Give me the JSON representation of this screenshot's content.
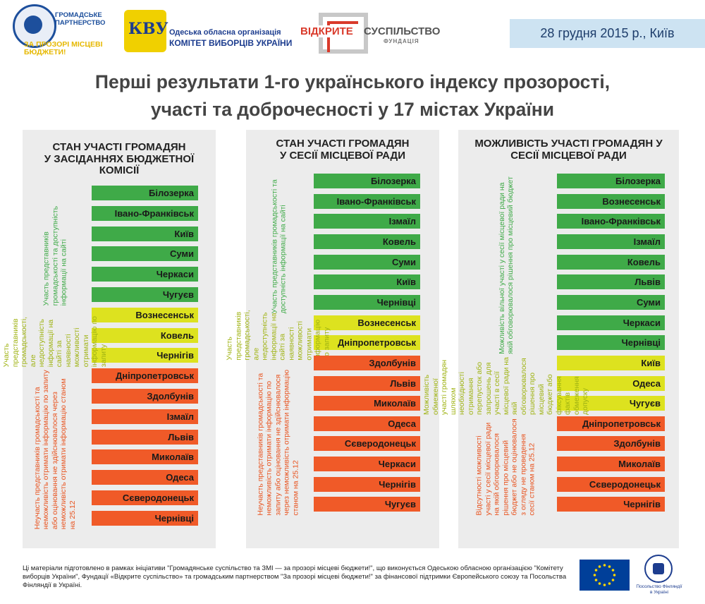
{
  "header": {
    "logo_gp_line1": "ГРОМАДСЬКЕ ПАРТНЕРСТВО",
    "logo_gp_line2": "ЗА ПРОЗОРІ МІСЦЕВІ БЮДЖЕТИ!",
    "logo_kvu_mark": "КВУ",
    "logo_kvu_line1": "Одеська обласна організація",
    "logo_kvu_line2": "КОМІТЕТ ВИБОРЦІВ УКРАЇНИ",
    "logo_os_word1": "ВІДКРИТЕ",
    "logo_os_word2": "СУСПІЛЬСТВО",
    "logo_os_word3": "ФУНДАЦІЯ",
    "date": "28 грудня 2015 р., Київ",
    "title_line1": "Перші результати 1-го українського індексу прозорості,",
    "title_line2": "участі  та доброчесності у 17 містах України"
  },
  "panels": [
    {
      "title": [
        "СТАН УЧАСТІ ГРОМАДЯН",
        "У ЗАСІДАННЯХ БЮДЖЕТНОЇ",
        "КОМІСІЇ"
      ],
      "groups": [
        {
          "color": "green",
          "label": "Участь представників громадськості та доступність інформації на сайті",
          "cities": [
            "Білозерка",
            "Івано-Франківськ",
            "Київ",
            "Суми",
            "Черкаси",
            "Чугуєв"
          ]
        },
        {
          "color": "yellow",
          "label": "Участь представників громадськості, але недоступність інформації на сайті за наявності можливості отримати інформацію по запиту",
          "cities": [
            "Вознесенськ",
            "Ковель",
            "Чернігів"
          ]
        },
        {
          "color": "red",
          "label": "Неучасть представників громадськості та неможливість отримати інформацію по запиту або оціновання не здійснювалося через неможливість отримати інформацію станом на 25.12",
          "cities": [
            "Дніпропетровськ",
            "Здолбунів",
            "Ізмаїл",
            "Львів",
            "Миколаїв",
            "Одеса",
            "Сєверодонецьк",
            "Чернівці"
          ]
        }
      ]
    },
    {
      "title": [
        "СТАН УЧАСТІ ГРОМАДЯН",
        "У СЕСІЇ МІСЦЕВОЇ РАДИ"
      ],
      "groups": [
        {
          "color": "green",
          "label": "Участь представників громадськості та доступність інформації на сайті",
          "cities": [
            "Білозерка",
            "Івано-Франківськ",
            "Ізмаїл",
            "Ковель",
            "Суми",
            "Київ",
            "Чернівці"
          ]
        },
        {
          "color": "yellow",
          "label": "Участь представників громадськості, але недоступність інформації на сайті за наявності можливості отримати інформацію по запиту",
          "cities": [
            "Вознесенськ",
            "Дніпропетровськ"
          ]
        },
        {
          "color": "red",
          "label": "Неучасть представників громадськості та неможливість отримати інформацію по запиту або оціновання не здійснювалося через неможливість отримати інформацію станом на 25.12",
          "cities": [
            "Здолбунів",
            "Львів",
            "Миколаїв",
            "Одеса",
            "Сєверодонецьк",
            "Черкаси",
            "Чернігів",
            "Чугуєв"
          ]
        }
      ]
    },
    {
      "title": [
        "МОЖЛИВІСТЬ УЧАСТІ ГРОМАДЯН У",
        "СЕСІЇ МІСЦЕВОЇ РАДИ"
      ],
      "groups": [
        {
          "color": "green",
          "label": "Можливість вільної участі у сесії місцевої ради на якій обговорювалося рішення про місцевий бюджет",
          "cities": [
            "Білозерка",
            "Вознесенськ",
            "Івано-Франківськ",
            "Ізмаїл",
            "Ковель",
            "Львів",
            "Суми",
            "Черкаси",
            "Чернівці"
          ]
        },
        {
          "color": "yellow",
          "label": "Можливість обмеженої участі громадян шляхом необхідності отримання перепусток або запрошень для участі в сесії місцевої ради на якій обговорювалося рішення про місцевий бюджет або фіксування фактів обмеження допуску",
          "cities": [
            "Київ",
            "Одеса",
            "Чугуєв"
          ]
        },
        {
          "color": "red",
          "label": "Відсутності можливості участі у сесії місцевої ради на якій обговорювалося рішення про місцевий бюджет або не оцінювалося з огляду не проведення сесії станом на 25.12",
          "cities": [
            "Дніпропетровськ",
            "Здолбунів",
            "Миколаїв",
            "Сєверодонецьк",
            "Чернігів"
          ]
        }
      ]
    }
  ],
  "footer": {
    "text": "Ці матеріали підготовлено в рамках ініціативи \"Громадянське суспільство та ЗМІ — за прозорі місцеві бюджети!\", що виконується Одеською обласною організацією \"Комітету виборців України\", Фундації «Відкрите суспільство» та громадським партнерством \"За прозорі місцеві бюджети!\" за фінансової підтримки Європейського союзу та Посольства Фінляндії в Україні.",
    "eu_label": "EU flag",
    "fi_label": "Посольство Фінляндії в Україні"
  },
  "colors": {
    "green": "#3faa48",
    "yellow": "#dde21f",
    "red": "#f05a28",
    "datebox": "#cde3f2"
  }
}
